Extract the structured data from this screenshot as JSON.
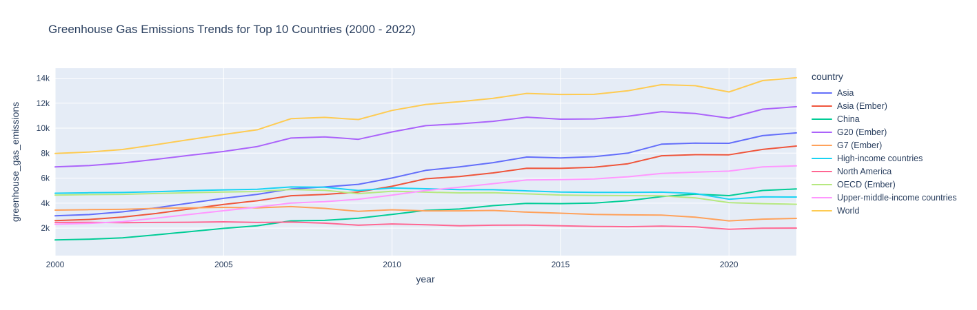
{
  "title": "Greenhouse Gas Emissions Trends for Top 10 Countries (2000 - 2022)",
  "legend": {
    "title": "country"
  },
  "colors": {
    "text": "#2a3f5f",
    "plot_bg": "#E5ECF6",
    "grid": "#FFFFFF",
    "page_bg": "#FFFFFF"
  },
  "chart_data": {
    "type": "line",
    "title": "Greenhouse Gas Emissions Trends for Top 10 Countries (2000 - 2022)",
    "xlabel": "year",
    "ylabel": "greenhouse_gas_emissions",
    "legend_title": "country",
    "legend_position": "right",
    "grid": true,
    "plot_bg": "#E5ECF6",
    "grid_color": "#FFFFFF",
    "text_color": "#2a3f5f",
    "xlim": [
      2000,
      2022
    ],
    "ylim": [
      -200,
      14800
    ],
    "x_ticks": [
      2000,
      2005,
      2010,
      2015,
      2020
    ],
    "y_ticks": [
      2000,
      4000,
      6000,
      8000,
      10000,
      12000,
      14000
    ],
    "y_tick_labels": [
      "2k",
      "4k",
      "6k",
      "8k",
      "10k",
      "12k",
      "14k"
    ],
    "x": [
      2000,
      2001,
      2002,
      2003,
      2004,
      2005,
      2006,
      2007,
      2008,
      2009,
      2010,
      2011,
      2012,
      2013,
      2014,
      2015,
      2016,
      2017,
      2018,
      2019,
      2020,
      2021,
      2022
    ],
    "series": [
      {
        "name": "Asia",
        "color": "#636EFA",
        "values": [
          2980,
          3080,
          3300,
          3620,
          4010,
          4380,
          4700,
          5130,
          5290,
          5500,
          6010,
          6620,
          6900,
          7240,
          7690,
          7620,
          7720,
          8000,
          8720,
          8800,
          8790,
          9400,
          9620
        ]
      },
      {
        "name": "Asia (Ember)",
        "color": "#EF553B",
        "values": [
          2600,
          2690,
          2880,
          3170,
          3540,
          3890,
          4190,
          4590,
          4690,
          4890,
          5350,
          5950,
          6130,
          6420,
          6790,
          6780,
          6870,
          7150,
          7790,
          7880,
          7870,
          8300,
          8570
        ]
      },
      {
        "name": "China",
        "color": "#00CC96",
        "values": [
          1050,
          1110,
          1220,
          1460,
          1720,
          1980,
          2190,
          2580,
          2620,
          2790,
          3090,
          3420,
          3530,
          3800,
          3980,
          3960,
          4000,
          4190,
          4520,
          4720,
          4600,
          5010,
          5130
        ]
      },
      {
        "name": "G20 (Ember)",
        "color": "#AB63FA",
        "values": [
          6900,
          7000,
          7210,
          7510,
          7830,
          8130,
          8530,
          9210,
          9300,
          9110,
          9700,
          10200,
          10350,
          10550,
          10880,
          10720,
          10740,
          10950,
          11320,
          11170,
          10800,
          11520,
          11720
        ]
      },
      {
        "name": "G7 (Ember)",
        "color": "#FFA15A",
        "values": [
          3440,
          3480,
          3500,
          3580,
          3620,
          3660,
          3620,
          3720,
          3580,
          3340,
          3470,
          3380,
          3380,
          3410,
          3280,
          3190,
          3090,
          3060,
          3040,
          2870,
          2580,
          2720,
          2780
        ]
      },
      {
        "name": "High-income countries",
        "color": "#19D3F3",
        "values": [
          4790,
          4830,
          4850,
          4920,
          5000,
          5060,
          5110,
          5290,
          5270,
          5010,
          5210,
          5150,
          5080,
          5070,
          4980,
          4890,
          4860,
          4860,
          4880,
          4770,
          4310,
          4500,
          4490
        ]
      },
      {
        "name": "North America",
        "color": "#FF6692",
        "values": [
          2450,
          2460,
          2430,
          2450,
          2470,
          2500,
          2450,
          2480,
          2400,
          2230,
          2330,
          2270,
          2190,
          2230,
          2240,
          2180,
          2130,
          2110,
          2160,
          2100,
          1910,
          1990,
          2000
        ]
      },
      {
        "name": "OECD (Ember)",
        "color": "#B6E880",
        "values": [
          4640,
          4680,
          4700,
          4770,
          4830,
          4890,
          4930,
          5090,
          5030,
          4760,
          4950,
          4880,
          4820,
          4830,
          4740,
          4650,
          4610,
          4600,
          4580,
          4420,
          4040,
          3960,
          3910
        ]
      },
      {
        "name": "Upper-middle-income countries",
        "color": "#FF97FF",
        "values": [
          2310,
          2380,
          2520,
          2800,
          3090,
          3390,
          3680,
          4000,
          4110,
          4310,
          4640,
          5010,
          5270,
          5560,
          5850,
          5880,
          5940,
          6110,
          6380,
          6480,
          6560,
          6900,
          6980
        ]
      },
      {
        "name": "World",
        "color": "#FECB52",
        "values": [
          7980,
          8090,
          8290,
          8680,
          9090,
          9490,
          9870,
          10760,
          10860,
          10690,
          11420,
          11900,
          12120,
          12390,
          12780,
          12700,
          12710,
          12990,
          13480,
          13400,
          12900,
          13810,
          14040
        ]
      }
    ]
  }
}
